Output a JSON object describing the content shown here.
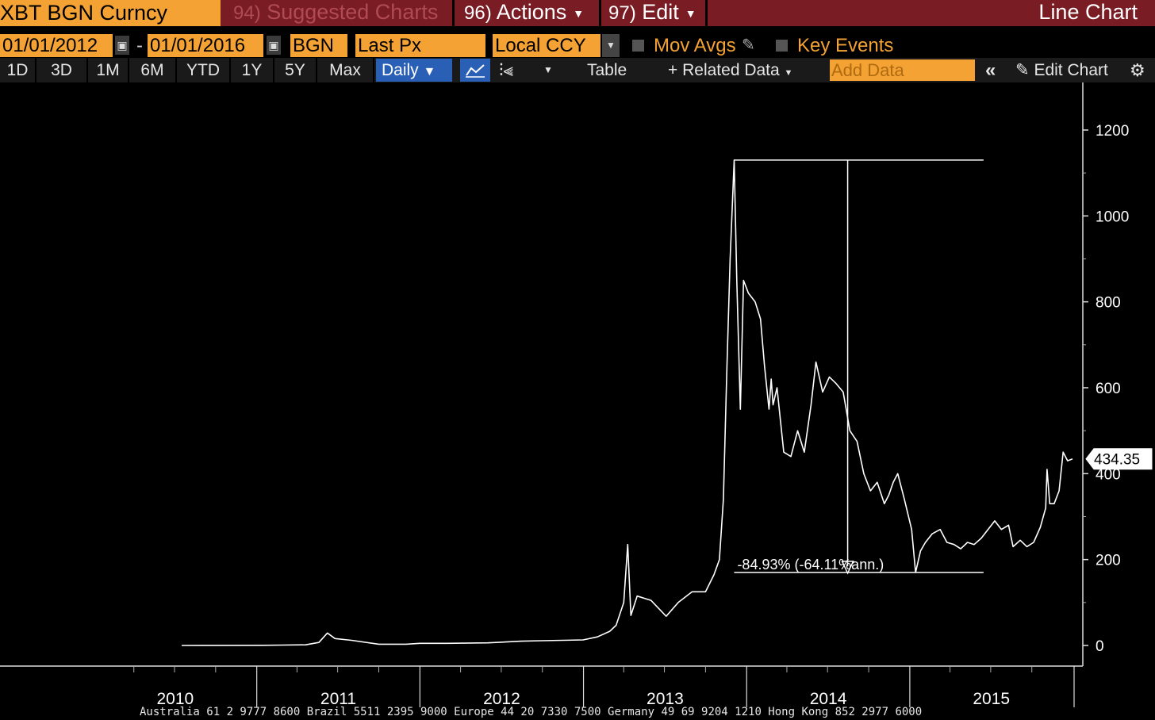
{
  "header": {
    "ticker": "XBT BGN Curncy",
    "suggested_num": "94)",
    "suggested_label": "Suggested Charts",
    "actions_num": "96)",
    "actions_label": "Actions",
    "edit_num": "97)",
    "edit_label": "Edit",
    "chart_type": "Line Chart"
  },
  "options": {
    "start_date": "01/01/2012",
    "date_separator": "-",
    "end_date": "01/01/2016",
    "source": "BGN",
    "field": "Last Px",
    "currency": "Local CCY",
    "mov_avgs": "Mov Avgs",
    "key_events": "Key Events"
  },
  "toolbar": {
    "ranges": [
      "1D",
      "3D",
      "1M",
      "6M",
      "YTD",
      "1Y",
      "5Y",
      "Max"
    ],
    "period": "Daily",
    "table": "Table",
    "related_data": "Related Data",
    "add_data_placeholder": "Add Data",
    "edit_chart": "Edit Chart"
  },
  "footer": {
    "phone_line": "Australia 61 2 9777 8600 Brazil 5511 2395 9000 Europe 44 20 7330 7500 Germany 49 69 9204 1210 Hong Kong 852 2977 6000"
  },
  "colors": {
    "accent_orange": "#f3a233",
    "header_red": "#7a1c24",
    "active_blue": "#2a5fb6",
    "line": "#ffffff",
    "background": "#000000"
  },
  "chart_data": {
    "type": "line",
    "title": "",
    "xlabel": "",
    "ylabel": "",
    "x_ticks": [
      "2010",
      "2011",
      "2012",
      "2013",
      "2014",
      "2015"
    ],
    "y_ticks": [
      0,
      200,
      400,
      600,
      800,
      1000,
      1200
    ],
    "ylim": [
      0,
      1300
    ],
    "xlim": [
      "2009-07-01",
      "2015-12-31"
    ],
    "grid": false,
    "last_value_label": "434.35",
    "annotation": {
      "text": "-84.93% (-64.11%ann.)",
      "high_value": 1130,
      "low_value": 170,
      "high_date": "2013-12-04",
      "low_date": "2015-01-14"
    },
    "series": [
      {
        "x": [
          "2010-07-17",
          "2010-10-01",
          "2011-01-15",
          "2011-03-01",
          "2011-04-20",
          "2011-05-20",
          "2011-06-08",
          "2011-06-25",
          "2011-08-01",
          "2011-10-01",
          "2011-12-01",
          "2012-01-01",
          "2012-03-01",
          "2012-06-01",
          "2012-08-15",
          "2012-10-01",
          "2012-12-31",
          "2013-02-01",
          "2013-03-01",
          "2013-03-15",
          "2013-04-01",
          "2013-04-10",
          "2013-04-17",
          "2013-05-01",
          "2013-06-01",
          "2013-07-05",
          "2013-08-01",
          "2013-09-01",
          "2013-10-01",
          "2013-10-20",
          "2013-11-01",
          "2013-11-10",
          "2013-11-18",
          "2013-11-25",
          "2013-12-04",
          "2013-12-10",
          "2013-12-18",
          "2013-12-25",
          "2014-01-05",
          "2014-01-20",
          "2014-02-01",
          "2014-02-10",
          "2014-02-20",
          "2014-02-25",
          "2014-03-01",
          "2014-03-10",
          "2014-03-25",
          "2014-04-10",
          "2014-04-25",
          "2014-05-10",
          "2014-05-25",
          "2014-06-05",
          "2014-06-20",
          "2014-07-05",
          "2014-07-20",
          "2014-08-05",
          "2014-08-20",
          "2014-09-05",
          "2014-09-20",
          "2014-10-05",
          "2014-10-20",
          "2014-11-05",
          "2014-11-15",
          "2014-11-25",
          "2014-12-05",
          "2014-12-20",
          "2015-01-05",
          "2015-01-14",
          "2015-01-25",
          "2015-02-05",
          "2015-02-20",
          "2015-03-10",
          "2015-03-25",
          "2015-04-10",
          "2015-04-25",
          "2015-05-10",
          "2015-05-25",
          "2015-06-10",
          "2015-06-25",
          "2015-07-10",
          "2015-07-25",
          "2015-08-10",
          "2015-08-20",
          "2015-09-05",
          "2015-09-20",
          "2015-10-05",
          "2015-10-20",
          "2015-11-01",
          "2015-11-04",
          "2015-11-10",
          "2015-11-20",
          "2015-12-01",
          "2015-12-10",
          "2015-12-20",
          "2015-12-31"
        ],
        "y": [
          0.07,
          0.1,
          0.4,
          0.9,
          1.5,
          7,
          29,
          16,
          12,
          3,
          3,
          5,
          5,
          6,
          10,
          11,
          13,
          20,
          33,
          47,
          100,
          235,
          70,
          115,
          105,
          68,
          100,
          125,
          125,
          165,
          200,
          340,
          650,
          900,
          1130,
          850,
          550,
          850,
          820,
          800,
          760,
          650,
          550,
          620,
          560,
          600,
          450,
          440,
          500,
          450,
          560,
          660,
          590,
          625,
          610,
          590,
          500,
          475,
          400,
          360,
          380,
          330,
          350,
          380,
          400,
          340,
          270,
          170,
          220,
          240,
          260,
          270,
          240,
          235,
          225,
          240,
          235,
          250,
          270,
          290,
          270,
          280,
          230,
          245,
          230,
          240,
          275,
          320,
          410,
          330,
          330,
          360,
          450,
          430,
          434.35
        ]
      }
    ]
  }
}
